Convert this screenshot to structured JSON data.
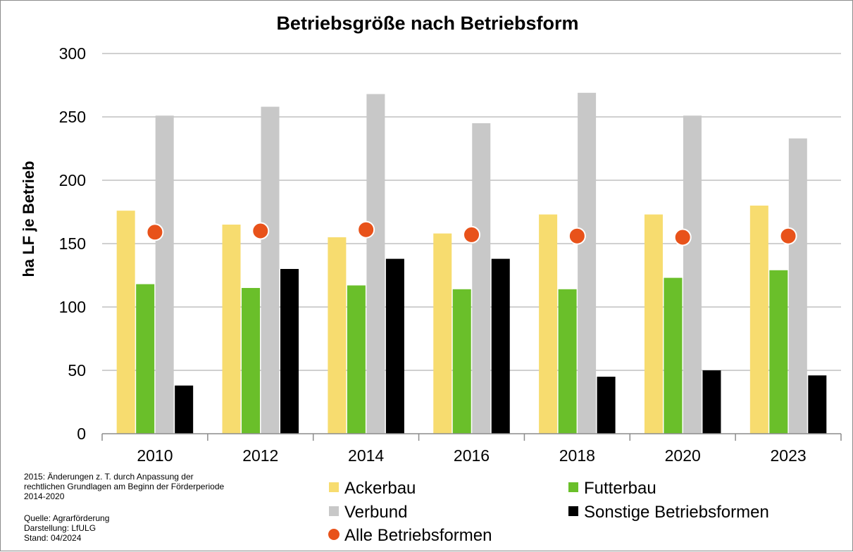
{
  "chart_data": {
    "type": "bar",
    "title": "Betriebsgröße nach Betriebsform",
    "ylabel": "ha LF je Betrieb",
    "xlabel": "",
    "ylim": [
      0,
      300
    ],
    "yticks": [
      0,
      50,
      100,
      150,
      200,
      250,
      300
    ],
    "grid": true,
    "legend_position": "bottom",
    "categories": [
      "2010",
      "2012",
      "2014",
      "2016",
      "2018",
      "2020",
      "2023"
    ],
    "series": [
      {
        "name": "Ackerbau",
        "kind": "bar",
        "color": "#f7dc6f",
        "values": [
          176,
          165,
          155,
          158,
          173,
          173,
          180
        ]
      },
      {
        "name": "Futterbau",
        "kind": "bar",
        "color": "#6abf2a",
        "values": [
          118,
          115,
          117,
          114,
          114,
          123,
          129
        ]
      },
      {
        "name": "Verbund",
        "kind": "bar",
        "color": "#c8c8c8",
        "values": [
          251,
          258,
          268,
          245,
          269,
          251,
          233
        ]
      },
      {
        "name": "Sonstige Betriebsformen",
        "kind": "bar",
        "color": "#000000",
        "values": [
          38,
          130,
          138,
          138,
          45,
          50,
          46
        ]
      },
      {
        "name": "Alle Betriebsformen",
        "kind": "marker",
        "color": "#e8521a",
        "values": [
          159,
          160,
          161,
          157,
          156,
          155,
          156
        ]
      }
    ]
  },
  "notes": {
    "change_note": "2015: Änderungen  z. T. durch Anpassung der\nrechtlichen Grundlagen am Beginn der Förderperiode\n2014-2020",
    "source": "Quelle: Agrarförderung\nDarstellung: LfULG\nStand: 04/2024"
  }
}
